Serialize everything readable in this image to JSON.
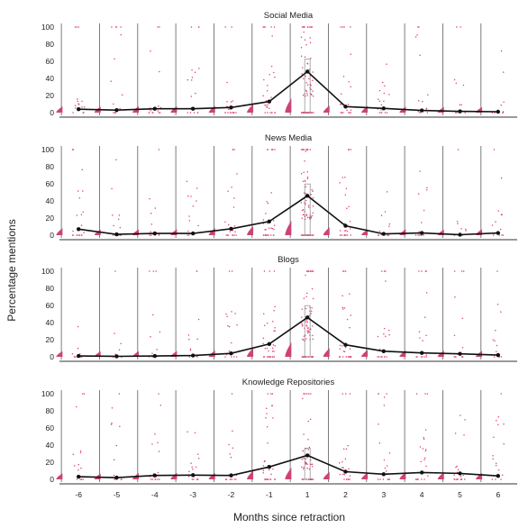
{
  "chart_data": {
    "type": "scatter",
    "xlabel": "Months since retraction",
    "ylabel": "Percentage mentions",
    "x_ticks": [
      "-6",
      "-5",
      "-4",
      "-3",
      "-2",
      "-1",
      "1",
      "2",
      "3",
      "4",
      "5",
      "6"
    ],
    "y_ticks": [
      "0",
      "20",
      "40",
      "60",
      "80",
      "100"
    ],
    "ylim": [
      0,
      100
    ],
    "colors": {
      "points": "#e0407c",
      "violin": "#cc4477",
      "mean_line": "#111111"
    },
    "panels": [
      {
        "title": "Social Media",
        "means": [
          4,
          3,
          4.5,
          4.5,
          6,
          13,
          48,
          7,
          5,
          2.5,
          1.5,
          1
        ]
      },
      {
        "title": "News Media",
        "means": [
          7,
          1,
          2,
          2,
          7.5,
          16,
          46,
          11,
          1.5,
          2.5,
          0.5,
          2.5
        ]
      },
      {
        "title": "Blogs",
        "means": [
          1,
          0.5,
          1,
          1.5,
          4,
          15,
          46,
          14,
          6.5,
          4.5,
          3.5,
          2
        ]
      },
      {
        "title": "Knowledge Repositories",
        "means": [
          3,
          2,
          4.5,
          5,
          4.5,
          14.5,
          28,
          9,
          6,
          8,
          7,
          4
        ]
      }
    ]
  }
}
